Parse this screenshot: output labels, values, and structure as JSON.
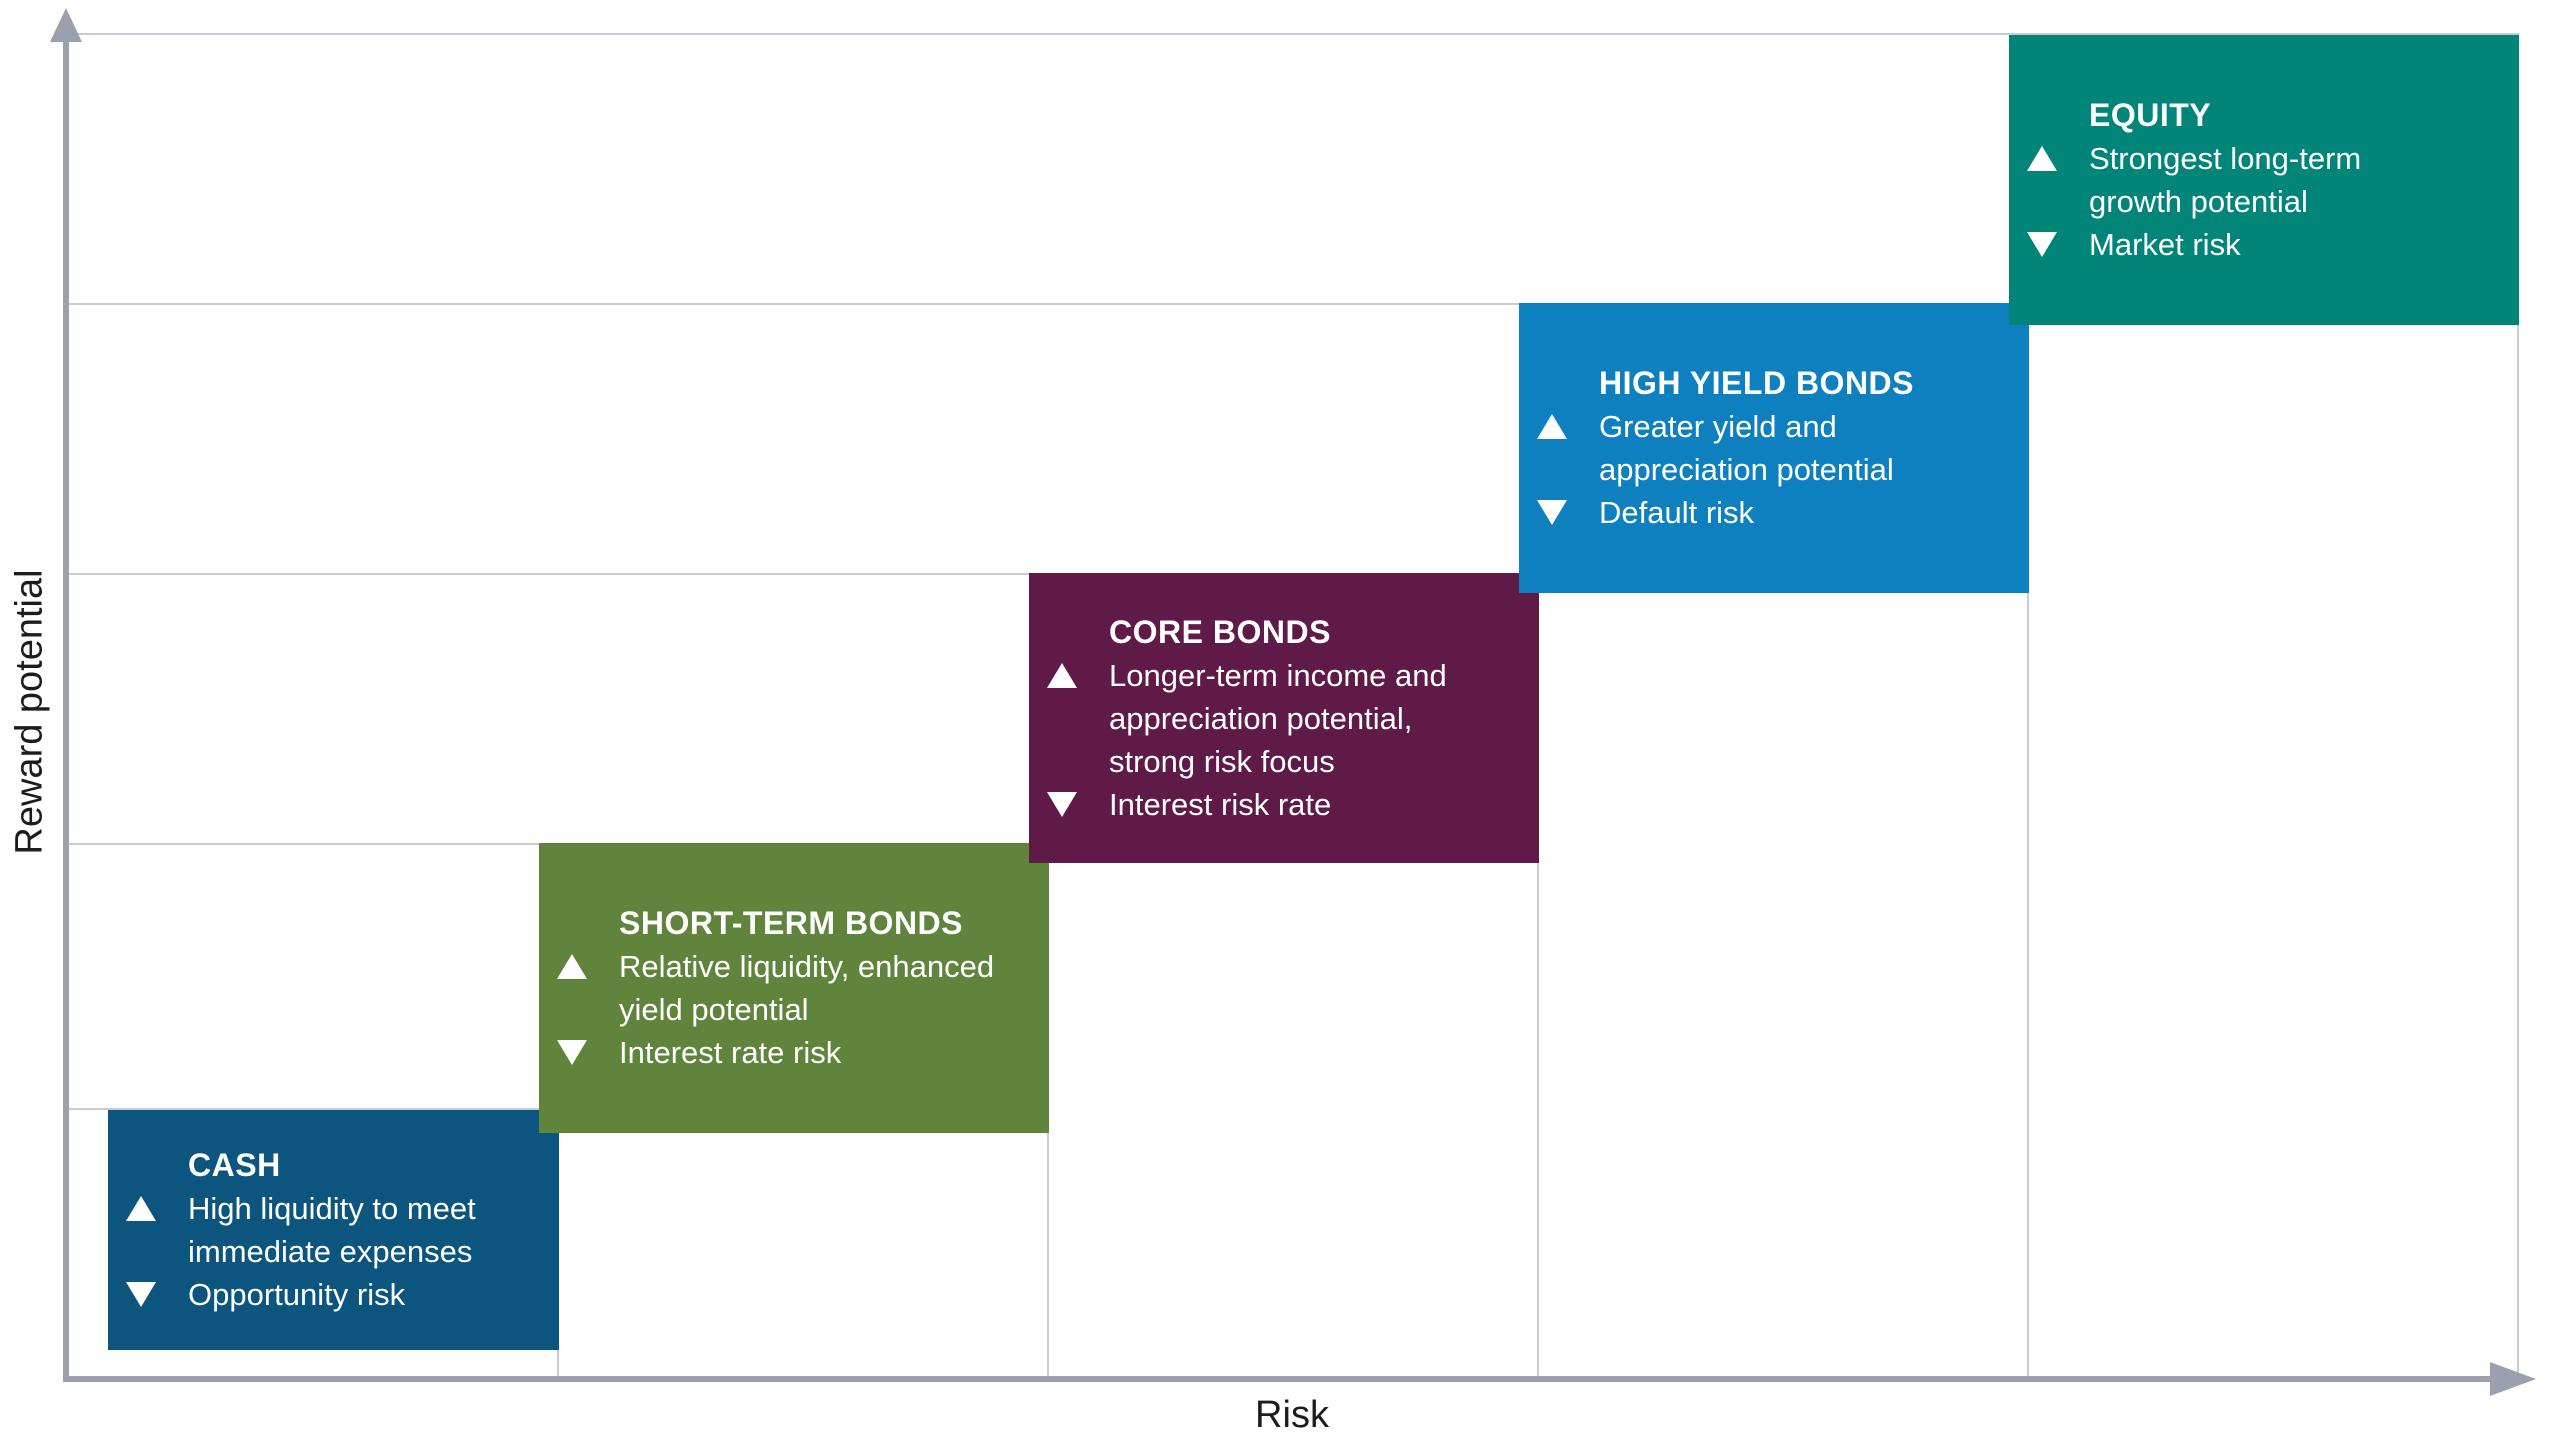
{
  "axes": {
    "x_label": "Risk",
    "y_label": "Reward potential"
  },
  "palette": {
    "axis_gray": "#9BA1AC",
    "gridline_gray": "#C9CDD3",
    "box_text": "#FFFFFF",
    "label_text": "#1C1C1C",
    "cash_blue": "#0B557E",
    "short_term_olive": "#61843D",
    "core_maroon": "#5F1A47",
    "high_yield_blue": "#0F80BF",
    "equity_teal": "#008578"
  },
  "boxes": [
    {
      "title": "CASH",
      "up": "High liquidity to meet\nimmediate expenses",
      "down": "Opportunity risk",
      "color": "#0B557E"
    },
    {
      "title": "SHORT-TERM BONDS",
      "up": "Relative liquidity, enhanced\nyield potential",
      "down": "Interest rate risk",
      "color": "#61843D"
    },
    {
      "title": "CORE BONDS",
      "up": "Longer-term income and\nappreciation potential,\nstrong risk focus",
      "down": "Interest risk rate",
      "color": "#5F1A47"
    },
    {
      "title": "HIGH YIELD BONDS",
      "up": "Greater yield and\nappreciation potential",
      "down": "Default risk",
      "color": "#0F80BF"
    },
    {
      "title": "EQUITY",
      "up": "Strongest long-term\ngrowth potential",
      "down": "Market risk",
      "color": "#008578"
    }
  ],
  "chart_data": {
    "type": "scatter",
    "title": "",
    "xlabel": "Risk",
    "ylabel": "Reward potential",
    "x_scale": "ordinal, increasing risk left to right, 5 steps",
    "y_scale": "ordinal, increasing reward bottom to top, 5 steps",
    "grid": "stepped horizontal gridlines, one per tier; vertical guide lines drop from each block to the x-axis",
    "legend": "none",
    "series": [
      {
        "name": "CASH",
        "risk_rank": 1,
        "reward_rank": 1,
        "advantage": "High liquidity to meet immediate expenses",
        "drawback": "Opportunity risk",
        "color": "#0B557E"
      },
      {
        "name": "SHORT-TERM BONDS",
        "risk_rank": 2,
        "reward_rank": 2,
        "advantage": "Relative liquidity, enhanced yield potential",
        "drawback": "Interest rate risk",
        "color": "#61843D"
      },
      {
        "name": "CORE BONDS",
        "risk_rank": 3,
        "reward_rank": 3,
        "advantage": "Longer-term income and appreciation potential, strong risk focus",
        "drawback": "Interest risk rate",
        "color": "#5F1A47"
      },
      {
        "name": "HIGH YIELD BONDS",
        "risk_rank": 4,
        "reward_rank": 4,
        "advantage": "Greater yield and appreciation potential",
        "drawback": "Default risk",
        "color": "#0F80BF"
      },
      {
        "name": "EQUITY",
        "risk_rank": 5,
        "reward_rank": 5,
        "advantage": "Strongest long-term growth potential",
        "drawback": "Market risk",
        "color": "#008578"
      }
    ]
  }
}
